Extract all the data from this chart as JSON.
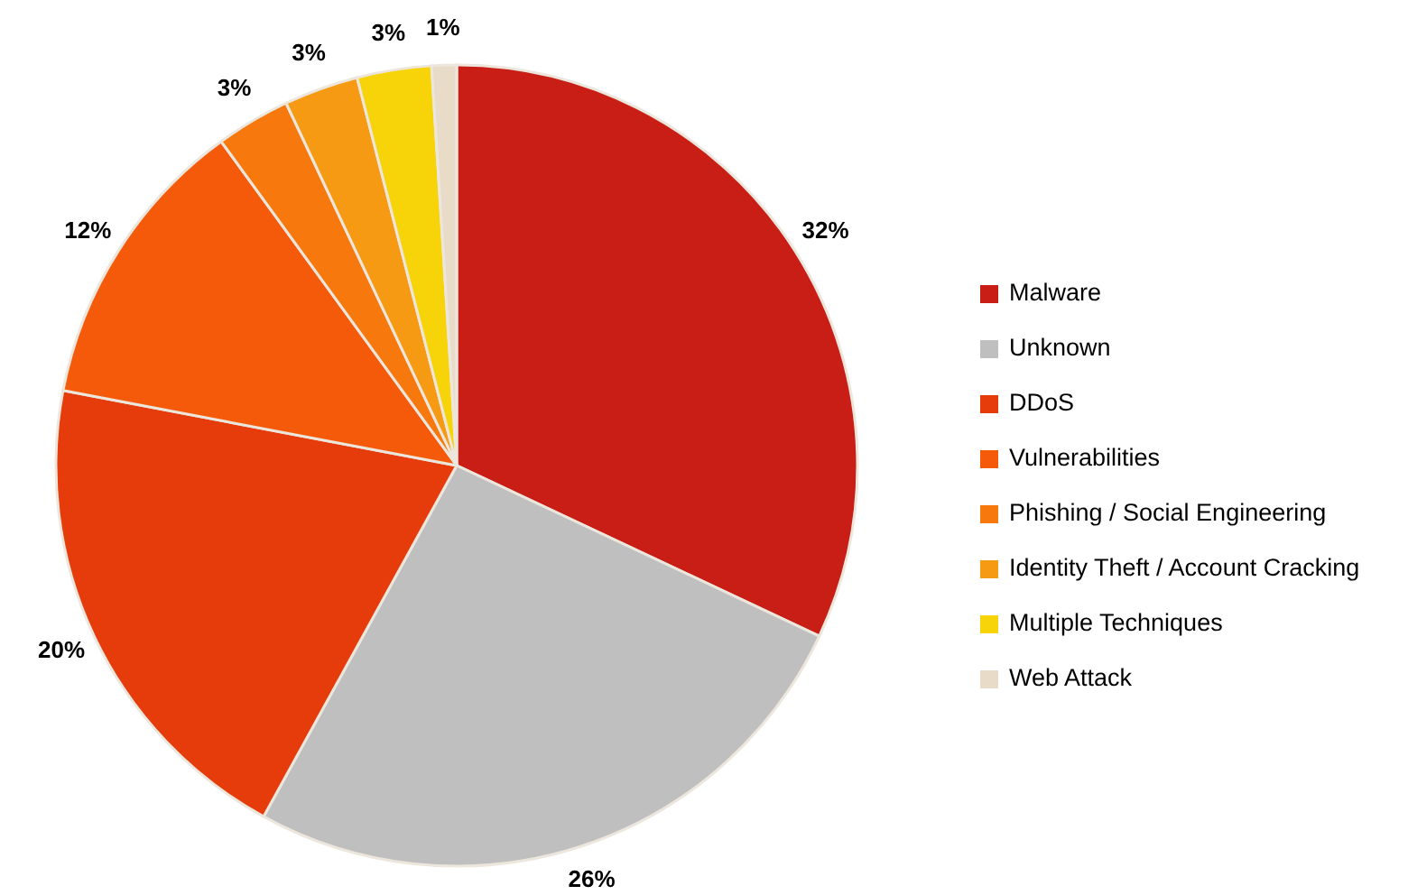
{
  "chart_data": {
    "type": "pie",
    "categories": [
      "Malware",
      "Unknown",
      "DDoS",
      "Vulnerabilities",
      "Phishing / Social Engineering",
      "Identity Theft / Account Cracking",
      "Multiple Techniques",
      "Web Attack"
    ],
    "values": [
      32,
      26,
      20,
      12,
      3,
      3,
      3,
      1
    ],
    "value_labels": [
      "32%",
      "26%",
      "20%",
      "12%",
      "3%",
      "3%",
      "3%",
      "1%"
    ],
    "colors": [
      "#c81e16",
      "#bfbfbf",
      "#e63c0c",
      "#f55a0a",
      "#f7780c",
      "#f59a12",
      "#f7d40a",
      "#e8dcc8"
    ],
    "legend": "right"
  }
}
